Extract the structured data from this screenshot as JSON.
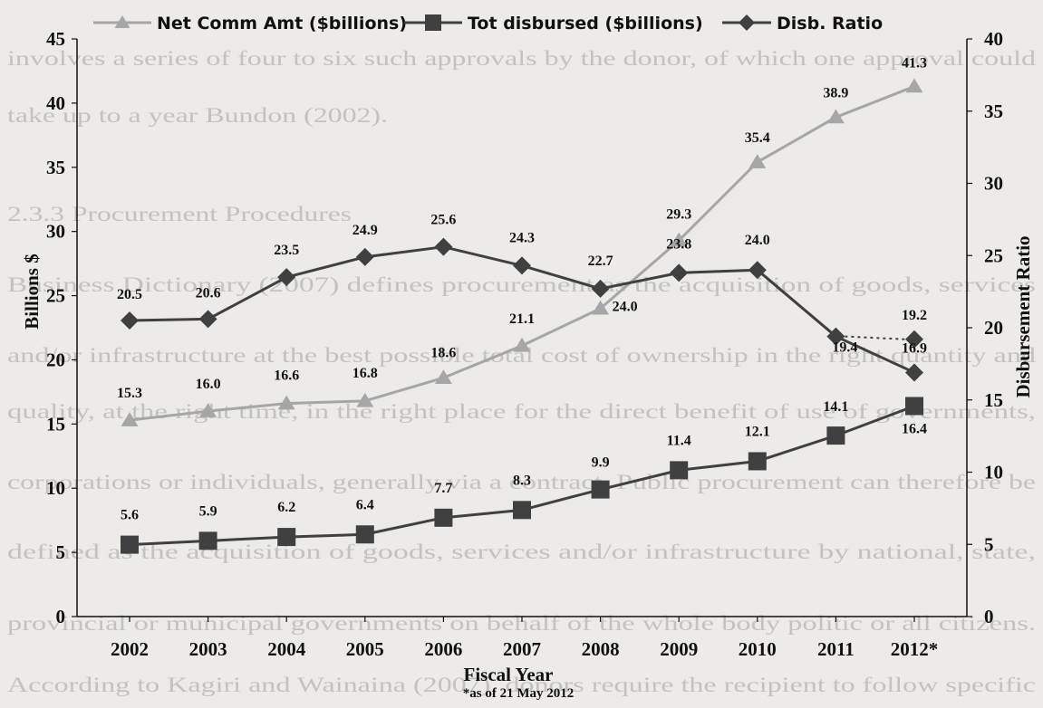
{
  "background_text": [
    "involves a series of four to six such approvals by the donor, of which one approval could",
    "take up to a year Bundon (2002).",
    "2.3.3 Procurement Procedures",
    "Business Dictionary (2007) defines procurement as the acquisition of goods, services",
    "and/or infrastructure at the best possible total cost of ownership in the right quantity and",
    "quality, at the right time, in the right place for the direct benefit of use of governments,",
    "corporations or individuals, generally via a contract. Public procurement can therefore be",
    "defined as the acquisition of goods, services and/or infrastructure by national, state,",
    "provincial or municipal governments on behalf of the whole body politic or all citizens.",
    "According to Kagiri and Wainaina (2007), donors require the recipient to follow specific"
  ],
  "colors": {
    "net_comm": "#a6a6a6",
    "tot_disbursed": "#404040",
    "disb_ratio": "#404040",
    "axis": "#111111"
  },
  "chart_data": {
    "type": "line",
    "x": [
      "2002",
      "2003",
      "2004",
      "2005",
      "2006",
      "2007",
      "2008",
      "2009",
      "2010",
      "2011",
      "2012*"
    ],
    "xlabel": "Fiscal Year",
    "note": "*as of 21 May 2012",
    "ylabel": "Billions $",
    "ylim": [
      0,
      45
    ],
    "yticks": [
      0,
      5,
      10,
      15,
      20,
      25,
      30,
      35,
      40,
      45
    ],
    "y2label": "Disbursement Ratio",
    "y2lim": [
      0,
      40
    ],
    "y2ticks": [
      0,
      5,
      10,
      15,
      20,
      25,
      30,
      35,
      40
    ],
    "legend_position": "top",
    "grid": false,
    "series": [
      {
        "name": "Net Comm Amt ($billions)",
        "axis": "left",
        "marker": "triangle",
        "values": [
          15.3,
          16.0,
          16.6,
          16.8,
          18.6,
          21.1,
          24.0,
          29.3,
          35.4,
          38.9,
          41.3
        ],
        "labels": [
          "15.3",
          "16.0",
          "16.6",
          "16.8",
          "18.6",
          "21.1",
          "24.0",
          "29.3",
          "35.4",
          "38.9",
          "41.3"
        ]
      },
      {
        "name": "Tot disbursed ($billions)",
        "axis": "left",
        "marker": "square",
        "values": [
          5.6,
          5.9,
          6.2,
          6.4,
          7.7,
          8.3,
          9.9,
          11.4,
          12.1,
          14.1,
          16.4
        ],
        "labels": [
          "5.6",
          "5.9",
          "6.2",
          "6.4",
          "7.7",
          "8.3",
          "9.9",
          "11.4",
          "12.1",
          "14.1",
          "16.4"
        ]
      },
      {
        "name": "Disb. Ratio",
        "axis": "right",
        "marker": "diamond",
        "values": [
          20.5,
          20.6,
          23.5,
          24.9,
          25.6,
          24.3,
          22.7,
          23.8,
          24.0,
          19.4,
          16.9
        ],
        "labels": [
          "20.5",
          "20.6",
          "23.5",
          "24.9",
          "25.6",
          "24.3",
          "22.7",
          "23.8",
          "24.0",
          "19.4",
          "16.9"
        ],
        "extra_point": {
          "x": "2012*",
          "value": 19.2,
          "label": "19.2",
          "style": "dotted"
        }
      }
    ]
  }
}
